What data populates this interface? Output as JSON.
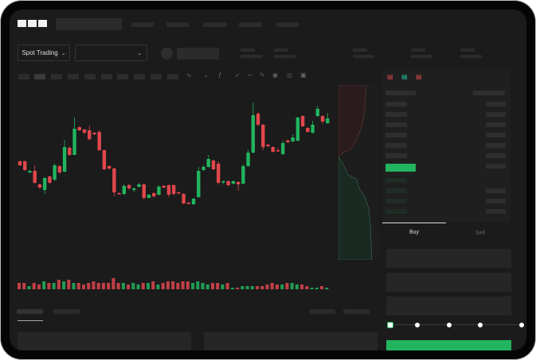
{
  "header": {
    "logo": "OKX"
  },
  "market_bar": {
    "trade_type": "Spot Trading"
  },
  "order_form": {
    "tabs": [
      "Buy",
      "Sell"
    ],
    "active_tab": "Buy",
    "slider_stops": 5,
    "slider_value_percent": 0
  },
  "colors": {
    "up": "#22b45e",
    "down": "#e0474c",
    "background": "#1b1b1b",
    "accent": "#22b45e"
  },
  "icons": [
    "okx-logo",
    "chevron-down-icon",
    "line-tool-icon",
    "pencil-icon",
    "camera-icon",
    "settings-icon",
    "fullscreen-icon",
    "order-book-both-icon",
    "order-book-buy-icon",
    "order-book-sell-icon"
  ],
  "chart_data": {
    "type": "candlestick",
    "ohlc": [
      [
        77,
        78,
        71,
        72
      ],
      [
        77,
        78,
        65,
        66
      ],
      [
        63,
        66,
        62,
        65
      ],
      [
        65,
        72,
        49,
        50
      ],
      [
        48,
        49,
        42,
        44
      ],
      [
        41,
        57,
        36,
        56
      ],
      [
        58,
        59,
        49,
        50
      ],
      [
        54,
        74,
        52,
        72
      ],
      [
        71,
        72,
        61,
        63
      ],
      [
        64,
        104,
        63,
        95
      ],
      [
        94,
        96,
        84,
        85
      ],
      [
        85,
        132,
        85,
        118
      ],
      [
        120,
        121,
        115,
        116
      ],
      [
        117,
        118,
        111,
        113
      ],
      [
        116,
        122,
        103,
        105
      ],
      [
        113,
        114,
        110,
        111
      ],
      [
        114,
        116,
        90,
        91
      ],
      [
        91,
        92,
        66,
        67
      ],
      [
        71,
        72,
        66,
        68
      ],
      [
        68,
        69,
        33,
        38
      ],
      [
        37,
        38,
        35,
        36
      ],
      [
        36,
        48,
        34,
        46
      ],
      [
        47,
        49,
        41,
        43
      ],
      [
        41,
        44,
        38,
        43
      ],
      [
        45,
        50,
        44,
        48
      ],
      [
        48,
        49,
        29,
        31
      ],
      [
        31,
        36,
        30,
        35
      ],
      [
        37,
        38,
        31,
        33
      ],
      [
        35,
        47,
        34,
        45
      ],
      [
        46,
        47,
        43,
        44
      ],
      [
        47,
        48,
        32,
        35
      ],
      [
        47,
        48,
        34,
        36
      ],
      [
        38,
        39,
        36,
        37
      ],
      [
        36,
        37,
        23,
        24
      ],
      [
        25,
        26,
        23,
        24
      ],
      [
        23,
        31,
        22,
        30
      ],
      [
        32,
        70,
        31,
        65
      ],
      [
        66,
        72,
        65,
        70
      ],
      [
        70,
        85,
        69,
        80
      ],
      [
        78,
        79,
        66,
        67
      ],
      [
        74,
        77,
        48,
        50
      ],
      [
        51,
        53,
        48,
        52
      ],
      [
        52,
        53,
        46,
        47
      ],
      [
        49,
        53,
        48,
        52
      ],
      [
        51,
        52,
        40,
        48
      ],
      [
        49,
        73,
        48,
        71
      ],
      [
        71,
        92,
        70,
        88
      ],
      [
        88,
        151,
        87,
        135
      ],
      [
        137,
        139,
        121,
        123
      ],
      [
        123,
        124,
        91,
        95
      ],
      [
        98,
        99,
        95,
        96
      ],
      [
        95,
        96,
        88,
        89
      ],
      [
        91,
        94,
        89,
        90
      ],
      [
        86,
        103,
        85,
        100
      ],
      [
        103,
        105,
        100,
        101
      ],
      [
        102,
        111,
        101,
        107
      ],
      [
        103,
        133,
        102,
        132
      ],
      [
        134,
        135,
        120,
        121
      ],
      [
        119,
        120,
        113,
        114
      ],
      [
        113,
        128,
        112,
        123
      ],
      [
        134,
        147,
        133,
        143
      ],
      [
        134,
        135,
        124,
        127
      ],
      [
        125,
        138,
        124,
        131
      ]
    ],
    "volume": [
      4,
      4,
      2,
      4,
      3,
      5,
      4,
      4,
      6,
      5,
      6,
      4,
      4,
      3,
      4,
      5,
      4,
      4,
      4,
      7,
      4,
      4,
      3,
      4,
      3,
      4,
      4,
      5,
      3,
      4,
      5,
      5,
      4,
      5,
      5,
      4,
      5,
      4,
      3,
      4,
      4,
      3,
      4,
      1,
      1,
      2,
      2,
      2,
      2,
      2,
      3,
      4,
      3,
      3,
      4,
      4,
      3,
      3,
      2,
      1,
      1,
      2,
      1
    ]
  }
}
